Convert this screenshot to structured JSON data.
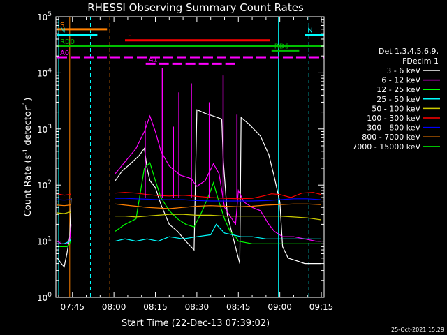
{
  "chart_data": {
    "type": "line",
    "title": "RHESSI Observing Summary Count Rates",
    "xlabel": "Start Time (22-Dec-13 07:39:02)",
    "ylabel_main": "Count Rate (s",
    "ylabel_sup1": "-1",
    "ylabel_mid": " detector",
    "ylabel_sup2": "-1",
    "ylabel_end": ")",
    "y_scale": "log",
    "ylim": [
      1,
      100000
    ],
    "xlim_min": [
      459,
      556
    ],
    "x_ticks": [
      {
        "t": 465,
        "label": "07:45"
      },
      {
        "t": 480,
        "label": "08:00"
      },
      {
        "t": 495,
        "label": "08:15"
      },
      {
        "t": 510,
        "label": "08:30"
      },
      {
        "t": 525,
        "label": "08:45"
      },
      {
        "t": 540,
        "label": "09:00"
      },
      {
        "t": 555,
        "label": "09:15"
      }
    ],
    "y_ticks": [
      {
        "v": 1,
        "base": "10",
        "exp": "0"
      },
      {
        "v": 10,
        "base": "10",
        "exp": "1"
      },
      {
        "v": 100,
        "base": "10",
        "exp": "2"
      },
      {
        "v": 1000,
        "base": "10",
        "exp": "3"
      },
      {
        "v": 10000,
        "base": "10",
        "exp": "4"
      },
      {
        "v": 100000,
        "base": "10",
        "exp": "5"
      }
    ],
    "legend": {
      "placement": "right",
      "header1": "Det 1,3,4,5,6,9,",
      "header2": "FDecim 1",
      "items": [
        {
          "label": "3 - 6 keV",
          "color": "#ffffff"
        },
        {
          "label": "6 - 12 keV",
          "color": "#ff00ff"
        },
        {
          "label": "12 - 25 keV",
          "color": "#00ff00"
        },
        {
          "label": "25 - 50 keV",
          "color": "#00ffff"
        },
        {
          "label": "50 - 100 keV",
          "color": "#cccc00"
        },
        {
          "label": "100 - 300 keV",
          "color": "#ff0000"
        },
        {
          "label": "300 - 800 keV",
          "color": "#0000ff"
        },
        {
          "label": "800 - 7000 keV",
          "color": "#ff8000"
        },
        {
          "label": "7000 - 15000 keV",
          "color": "#00c000"
        }
      ]
    },
    "flag_bars": [
      {
        "label": "S",
        "color": "#ff8000",
        "t0": 459.5,
        "t1": 477.5,
        "v": 60000,
        "dashed": false
      },
      {
        "label": "N",
        "color": "#00ffff",
        "t0": 459.5,
        "t1": 474.0,
        "v": 48000,
        "dashed": false
      },
      {
        "label": "N",
        "color": "#00ffff",
        "t0": 549.0,
        "t1": 556.0,
        "v": 48000,
        "dashed": false
      },
      {
        "label": "F",
        "color": "#ff0000",
        "t0": 484.0,
        "t1": 536.5,
        "v": 38000,
        "dashed": false
      },
      {
        "label": "RD0",
        "color": "#00c000",
        "t0": 459.5,
        "t1": 556.0,
        "v": 30000,
        "dashed": false
      },
      {
        "label": "RD6",
        "color": "#00c000",
        "t0": 537.0,
        "t1": 547.0,
        "v": 25000,
        "dashed": false
      },
      {
        "label": "A0",
        "color": "#ff00ff",
        "t0": 459.5,
        "t1": 556.0,
        "v": 19000,
        "dashed": true
      },
      {
        "label": "A1",
        "color": "#ff00ff",
        "t0": 491.5,
        "t1": 524.5,
        "v": 14500,
        "dashed": true
      }
    ],
    "vlines": [
      {
        "t": 460.0,
        "color": "#00ffff",
        "dashed": false
      },
      {
        "t": 464.0,
        "color": "#ff8000",
        "dashed": false
      },
      {
        "t": 471.5,
        "color": "#00ffff",
        "dashed": true
      },
      {
        "t": 478.5,
        "color": "#ff8000",
        "dashed": true
      },
      {
        "t": 539.5,
        "color": "#00ffff",
        "dashed": false
      },
      {
        "t": 550.5,
        "color": "#00ffff",
        "dashed": true
      }
    ],
    "series": [
      {
        "name": "3 - 6 keV",
        "color": "#ffffff",
        "points": [
          [
            459.5,
            5
          ],
          [
            461,
            4
          ],
          [
            462,
            3.5
          ],
          [
            463,
            6
          ],
          [
            464,
            12
          ],
          [
            464.5,
            60
          ],
          [
            480.5,
            120
          ],
          [
            483,
            180
          ],
          [
            486,
            240
          ],
          [
            489,
            330
          ],
          [
            491,
            450
          ],
          [
            492,
            200
          ],
          [
            493,
            120
          ],
          [
            495,
            90
          ],
          [
            497,
            45
          ],
          [
            500,
            20
          ],
          [
            503,
            15
          ],
          [
            506,
            10
          ],
          [
            509,
            7
          ],
          [
            510,
            2200
          ],
          [
            513,
            1900
          ],
          [
            516,
            1700
          ],
          [
            519,
            1500
          ],
          [
            519.5,
            300
          ],
          [
            521,
            30
          ],
          [
            523,
            12
          ],
          [
            525,
            5
          ],
          [
            525.5,
            4
          ],
          [
            526,
            1600
          ],
          [
            529,
            1200
          ],
          [
            533,
            750
          ],
          [
            536,
            350
          ],
          [
            538,
            140
          ],
          [
            540,
            50
          ],
          [
            541,
            8
          ],
          [
            543,
            5
          ],
          [
            546,
            4.5
          ],
          [
            549,
            4
          ],
          [
            553,
            4
          ],
          [
            555,
            4
          ]
        ]
      },
      {
        "name": "6 - 12 keV",
        "color": "#ff00ff",
        "points": [
          [
            459.5,
            10
          ],
          [
            461,
            9
          ],
          [
            463,
            9
          ],
          [
            464,
            10
          ],
          [
            464.5,
            20
          ],
          [
            480.5,
            160
          ],
          [
            484,
            260
          ],
          [
            488,
            450
          ],
          [
            491,
            900
          ],
          [
            493,
            1700
          ],
          [
            495,
            900
          ],
          [
            497,
            400
          ],
          [
            500,
            220
          ],
          [
            504,
            150
          ],
          [
            508,
            130
          ],
          [
            509,
            110
          ],
          [
            510,
            95
          ],
          [
            513,
            120
          ],
          [
            516,
            240
          ],
          [
            518,
            160
          ],
          [
            520,
            40
          ],
          [
            522,
            28
          ],
          [
            524,
            20
          ],
          [
            525,
            80
          ],
          [
            527,
            50
          ],
          [
            530,
            40
          ],
          [
            533,
            35
          ],
          [
            536,
            20
          ],
          [
            538,
            15
          ],
          [
            541,
            12
          ],
          [
            545,
            12
          ],
          [
            549,
            11
          ],
          [
            553,
            10
          ],
          [
            555,
            10
          ]
        ]
      },
      {
        "name": "12 - 25 keV",
        "color": "#00ff00",
        "points": [
          [
            459.5,
            8
          ],
          [
            461,
            8
          ],
          [
            463,
            8
          ],
          [
            464,
            9
          ],
          [
            464.5,
            12
          ],
          [
            480.5,
            15
          ],
          [
            484,
            20
          ],
          [
            488,
            25
          ],
          [
            491,
            200
          ],
          [
            493,
            250
          ],
          [
            495,
            120
          ],
          [
            497,
            60
          ],
          [
            500,
            35
          ],
          [
            503,
            25
          ],
          [
            506,
            20
          ],
          [
            509,
            18
          ],
          [
            512,
            35
          ],
          [
            515,
            80
          ],
          [
            516,
            110
          ],
          [
            518,
            50
          ],
          [
            520,
            25
          ],
          [
            522,
            15
          ],
          [
            524,
            12
          ],
          [
            525,
            10
          ],
          [
            530,
            9
          ],
          [
            535,
            9
          ],
          [
            540,
            9
          ],
          [
            545,
            9
          ],
          [
            550,
            9
          ],
          [
            555,
            9
          ]
        ]
      },
      {
        "name": "25 - 50 keV",
        "color": "#00ffff",
        "points": [
          [
            459.5,
            9
          ],
          [
            462,
            9
          ],
          [
            464,
            10
          ],
          [
            464.5,
            11
          ],
          [
            480.5,
            10
          ],
          [
            484,
            11
          ],
          [
            488,
            10
          ],
          [
            492,
            11
          ],
          [
            496,
            10
          ],
          [
            500,
            12
          ],
          [
            505,
            11
          ],
          [
            510,
            12
          ],
          [
            515,
            13
          ],
          [
            517,
            20
          ],
          [
            520,
            14
          ],
          [
            523,
            13
          ],
          [
            526,
            12
          ],
          [
            530,
            12
          ],
          [
            535,
            11
          ],
          [
            540,
            11
          ],
          [
            545,
            11
          ],
          [
            550,
            11
          ],
          [
            555,
            11
          ]
        ]
      },
      {
        "name": "50 - 100 keV",
        "color": "#cccc00",
        "points": [
          [
            459.5,
            32
          ],
          [
            462,
            31
          ],
          [
            464,
            33
          ],
          [
            464.5,
            32
          ],
          [
            480.5,
            28
          ],
          [
            484,
            28
          ],
          [
            488,
            27
          ],
          [
            492,
            28
          ],
          [
            496,
            29
          ],
          [
            500,
            30
          ],
          [
            505,
            30
          ],
          [
            510,
            29
          ],
          [
            515,
            29
          ],
          [
            520,
            28
          ],
          [
            525,
            28
          ],
          [
            530,
            28
          ],
          [
            535,
            28
          ],
          [
            540,
            28
          ],
          [
            545,
            27
          ],
          [
            550,
            26
          ],
          [
            555,
            24
          ]
        ]
      },
      {
        "name": "100 - 300 keV",
        "color": "#ff0000",
        "points": [
          [
            459.5,
            70
          ],
          [
            462,
            66
          ],
          [
            464,
            68
          ],
          [
            464.5,
            70
          ],
          [
            480.5,
            72
          ],
          [
            484,
            74
          ],
          [
            488,
            72
          ],
          [
            492,
            68
          ],
          [
            496,
            65
          ],
          [
            500,
            64
          ],
          [
            505,
            66
          ],
          [
            510,
            63
          ],
          [
            515,
            60
          ],
          [
            520,
            58
          ],
          [
            525,
            57
          ],
          [
            530,
            58
          ],
          [
            534,
            64
          ],
          [
            537,
            70
          ],
          [
            540,
            68
          ],
          [
            544,
            60
          ],
          [
            548,
            72
          ],
          [
            552,
            74
          ],
          [
            555,
            68
          ]
        ]
      },
      {
        "name": "300 - 800 keV",
        "color": "#0000ff",
        "points": [
          [
            459.5,
            55
          ],
          [
            462,
            54
          ],
          [
            464,
            55
          ],
          [
            464.5,
            56
          ],
          [
            480.5,
            58
          ],
          [
            484,
            58
          ],
          [
            488,
            57
          ],
          [
            492,
            56
          ],
          [
            496,
            55
          ],
          [
            500,
            55
          ],
          [
            505,
            55
          ],
          [
            510,
            53
          ],
          [
            515,
            52
          ],
          [
            520,
            52
          ],
          [
            525,
            52
          ],
          [
            530,
            52
          ],
          [
            535,
            53
          ],
          [
            540,
            55
          ],
          [
            545,
            57
          ],
          [
            550,
            57
          ],
          [
            555,
            55
          ]
        ]
      },
      {
        "name": "800 - 7000 keV",
        "color": "#ff8000",
        "points": [
          [
            459.5,
            44
          ],
          [
            462,
            43
          ],
          [
            464,
            44
          ],
          [
            464.5,
            45
          ],
          [
            480.5,
            46
          ],
          [
            484,
            44
          ],
          [
            488,
            42
          ],
          [
            492,
            40
          ],
          [
            496,
            39
          ],
          [
            500,
            38
          ],
          [
            505,
            40
          ],
          [
            510,
            42
          ],
          [
            515,
            43
          ],
          [
            520,
            42
          ],
          [
            525,
            41
          ],
          [
            530,
            42
          ],
          [
            535,
            44
          ],
          [
            540,
            45
          ],
          [
            545,
            46
          ],
          [
            550,
            46
          ],
          [
            555,
            45
          ]
        ]
      },
      {
        "name": "7000 - 15000 keV",
        "color": "#00c000",
        "points": []
      }
    ],
    "spikes": [
      {
        "t": 491.3,
        "v": 1400,
        "color": "#ff00ff"
      },
      {
        "t": 497.5,
        "v": 12000,
        "color": "#ff00ff"
      },
      {
        "t": 501.5,
        "v": 1100,
        "color": "#ff00ff"
      },
      {
        "t": 503.5,
        "v": 4500,
        "color": "#ff00ff"
      },
      {
        "t": 508.0,
        "v": 6500,
        "color": "#ff00ff"
      },
      {
        "t": 514.5,
        "v": 3000,
        "color": "#ff00ff"
      },
      {
        "t": 519.5,
        "v": 9000,
        "color": "#ff00ff"
      },
      {
        "t": 524.5,
        "v": 1800,
        "color": "#ff00ff"
      }
    ],
    "timestamp": "25-Oct-2021 15:29"
  }
}
